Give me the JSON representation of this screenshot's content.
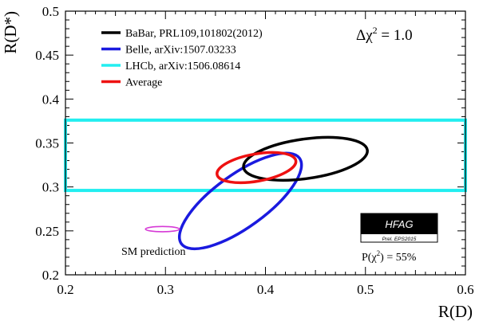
{
  "chart_data": {
    "type": "scatter",
    "title": "",
    "xlabel": "R(D)",
    "ylabel": "R(D*)",
    "xlim": [
      0.2,
      0.6
    ],
    "ylim": [
      0.2,
      0.5
    ],
    "xticks": [
      "0.2",
      "0.3",
      "0.4",
      "0.5",
      "0.6"
    ],
    "yticks": [
      "0.2",
      "0.25",
      "0.3",
      "0.35",
      "0.4",
      "0.45",
      "0.5"
    ],
    "grid": false,
    "legend_position": "top-left",
    "delta_chi2_label": {
      "prefix": "Δχ",
      "sup": "2",
      "suffix": " = 1.0"
    },
    "p_chi2_label": {
      "prefix": "P(χ",
      "sup": "2",
      "suffix": ") = 55%"
    },
    "badge": {
      "title": "HFAG",
      "subtitle": "Prel. EPS2015"
    },
    "sm_label": "SM prediction",
    "series": [
      {
        "name": "BaBar, PRL109,101802(2012)",
        "kind": "ellipse",
        "color": "#000000",
        "center": [
          0.44,
          0.332
        ],
        "semi_axes": [
          0.0625,
          0.0225
        ],
        "angle_deg": -8
      },
      {
        "name": "Belle, arXiv:1507.03233",
        "kind": "ellipse",
        "color": "#1a1adf",
        "center": [
          0.375,
          0.284
        ],
        "semi_axes": [
          0.073,
          0.03
        ],
        "angle_deg": -36
      },
      {
        "name": "LHCb, arXiv:1506.08614",
        "kind": "band",
        "color": "#22eef0",
        "x_range": [
          0.2,
          0.6
        ],
        "y_range": [
          0.296,
          0.376
        ]
      },
      {
        "name": "Average",
        "kind": "ellipse",
        "color": "#ee1111",
        "center": [
          0.391,
          0.322
        ],
        "semi_axes": [
          0.04,
          0.0155
        ],
        "angle_deg": -10
      }
    ],
    "sm_prediction": {
      "kind": "ellipse",
      "color": "#d63ad6",
      "center": [
        0.297,
        0.252
      ],
      "semi_axes": [
        0.017,
        0.003
      ],
      "angle_deg": 0
    }
  }
}
